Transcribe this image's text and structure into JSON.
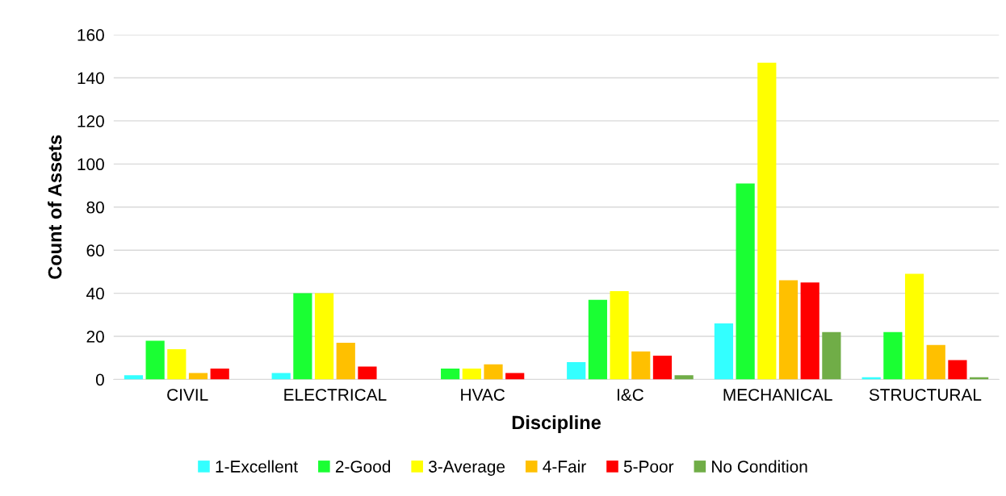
{
  "chart_data": {
    "type": "bar",
    "xlabel": "Discipline",
    "ylabel": "Count of Assets",
    "categories": [
      "CIVIL",
      "ELECTRICAL",
      "HVAC",
      "I&C",
      "MECHANICAL",
      "STRUCTURAL"
    ],
    "series": [
      {
        "name": "1-Excellent",
        "color": "#33ffff",
        "values": [
          2,
          3,
          0,
          8,
          26,
          1
        ]
      },
      {
        "name": "2-Good",
        "color": "#1aff33",
        "values": [
          18,
          40,
          5,
          37,
          91,
          22
        ]
      },
      {
        "name": "3-Average",
        "color": "#ffff00",
        "values": [
          14,
          40,
          5,
          41,
          147,
          49
        ]
      },
      {
        "name": "4-Fair",
        "color": "#ffc000",
        "values": [
          3,
          17,
          7,
          13,
          46,
          16
        ]
      },
      {
        "name": "5-Poor",
        "color": "#ff0000",
        "values": [
          5,
          6,
          3,
          11,
          45,
          9
        ]
      },
      {
        "name": "No Condition",
        "color": "#70ad47",
        "values": [
          0,
          0,
          0,
          2,
          22,
          1
        ]
      }
    ],
    "ylim": [
      0,
      160
    ],
    "yticks": [
      0,
      20,
      40,
      60,
      80,
      100,
      120,
      140,
      160
    ],
    "grid": "y",
    "legend": "bottom"
  }
}
